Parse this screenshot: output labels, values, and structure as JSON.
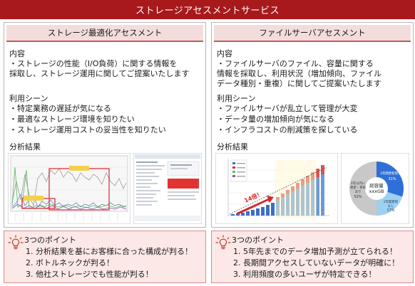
{
  "header": {
    "title": "ストレージアセスメントサービス"
  },
  "left": {
    "title": "ストレージ最適化アセスメント",
    "content_head": "内容",
    "content_lines": [
      "・ストレージの性能（I/O負荷）に関する情報を",
      "採取し、ストレージ運用に関してご提案いたします"
    ],
    "scene_head": "利用シーン",
    "scenes": [
      "・特定業務の遅延が気になる",
      "・最適なストレージ環境を知りたい",
      "・ストレージ運用コストの妥当性を知りたい"
    ],
    "result_head": "分析結果",
    "points_head": "3つのポイント",
    "points": [
      "1. 分析結果を基にお客様に合った構成が判る！",
      "2. ボトルネックが判る！",
      "3. 他社ストレージでも性能が判る！"
    ]
  },
  "right": {
    "title": "ファイルサーバアセスメント",
    "content_head": "内容",
    "content_lines": [
      "・ファイルサーバのファイル、容量に関する",
      "情報を採取し、利用状況（増加傾向、ファイル",
      "データ種別・重複）に関してご提案いたします"
    ],
    "scene_head": "利用シーン",
    "scenes": [
      "・ファイルサーバが乱立して管理が大変",
      "・データ量の増加傾向が気になる",
      "・インフラコストの削減策を探している"
    ],
    "result_head": "分析結果",
    "points_head": "3つのポイント",
    "points": [
      "1. 5年先までのデータ増加予測が立てられる！",
      "2. 長期間アクセスしていないデータが明確に！",
      "3. 利用頻度の多いユーザが特定できる！"
    ]
  },
  "thumb_right": {
    "arrow_label": "14倍！",
    "pie_center_1": "総容量",
    "pie_center_2": "xxxGB",
    "pie_label_a": "2年間更新無しは",
    "pie_label_a_pct": "31%",
    "pie_label_b": "2年間更新",
    "pie_label_b2": "なし",
    "pie_label_b_pct": "17%",
    "pie_label_c1": "2年以内に",
    "pie_label_c2": "更新・参照",
    "pie_label_c3": "あり",
    "pie_label_c_pct": "52%"
  },
  "colors": {
    "brand_red": "#a8191c",
    "subhead_bg": "#f3dddc",
    "points_bg": "#fbe8e7"
  },
  "icons": {
    "bulb": "lightbulb-icon"
  }
}
